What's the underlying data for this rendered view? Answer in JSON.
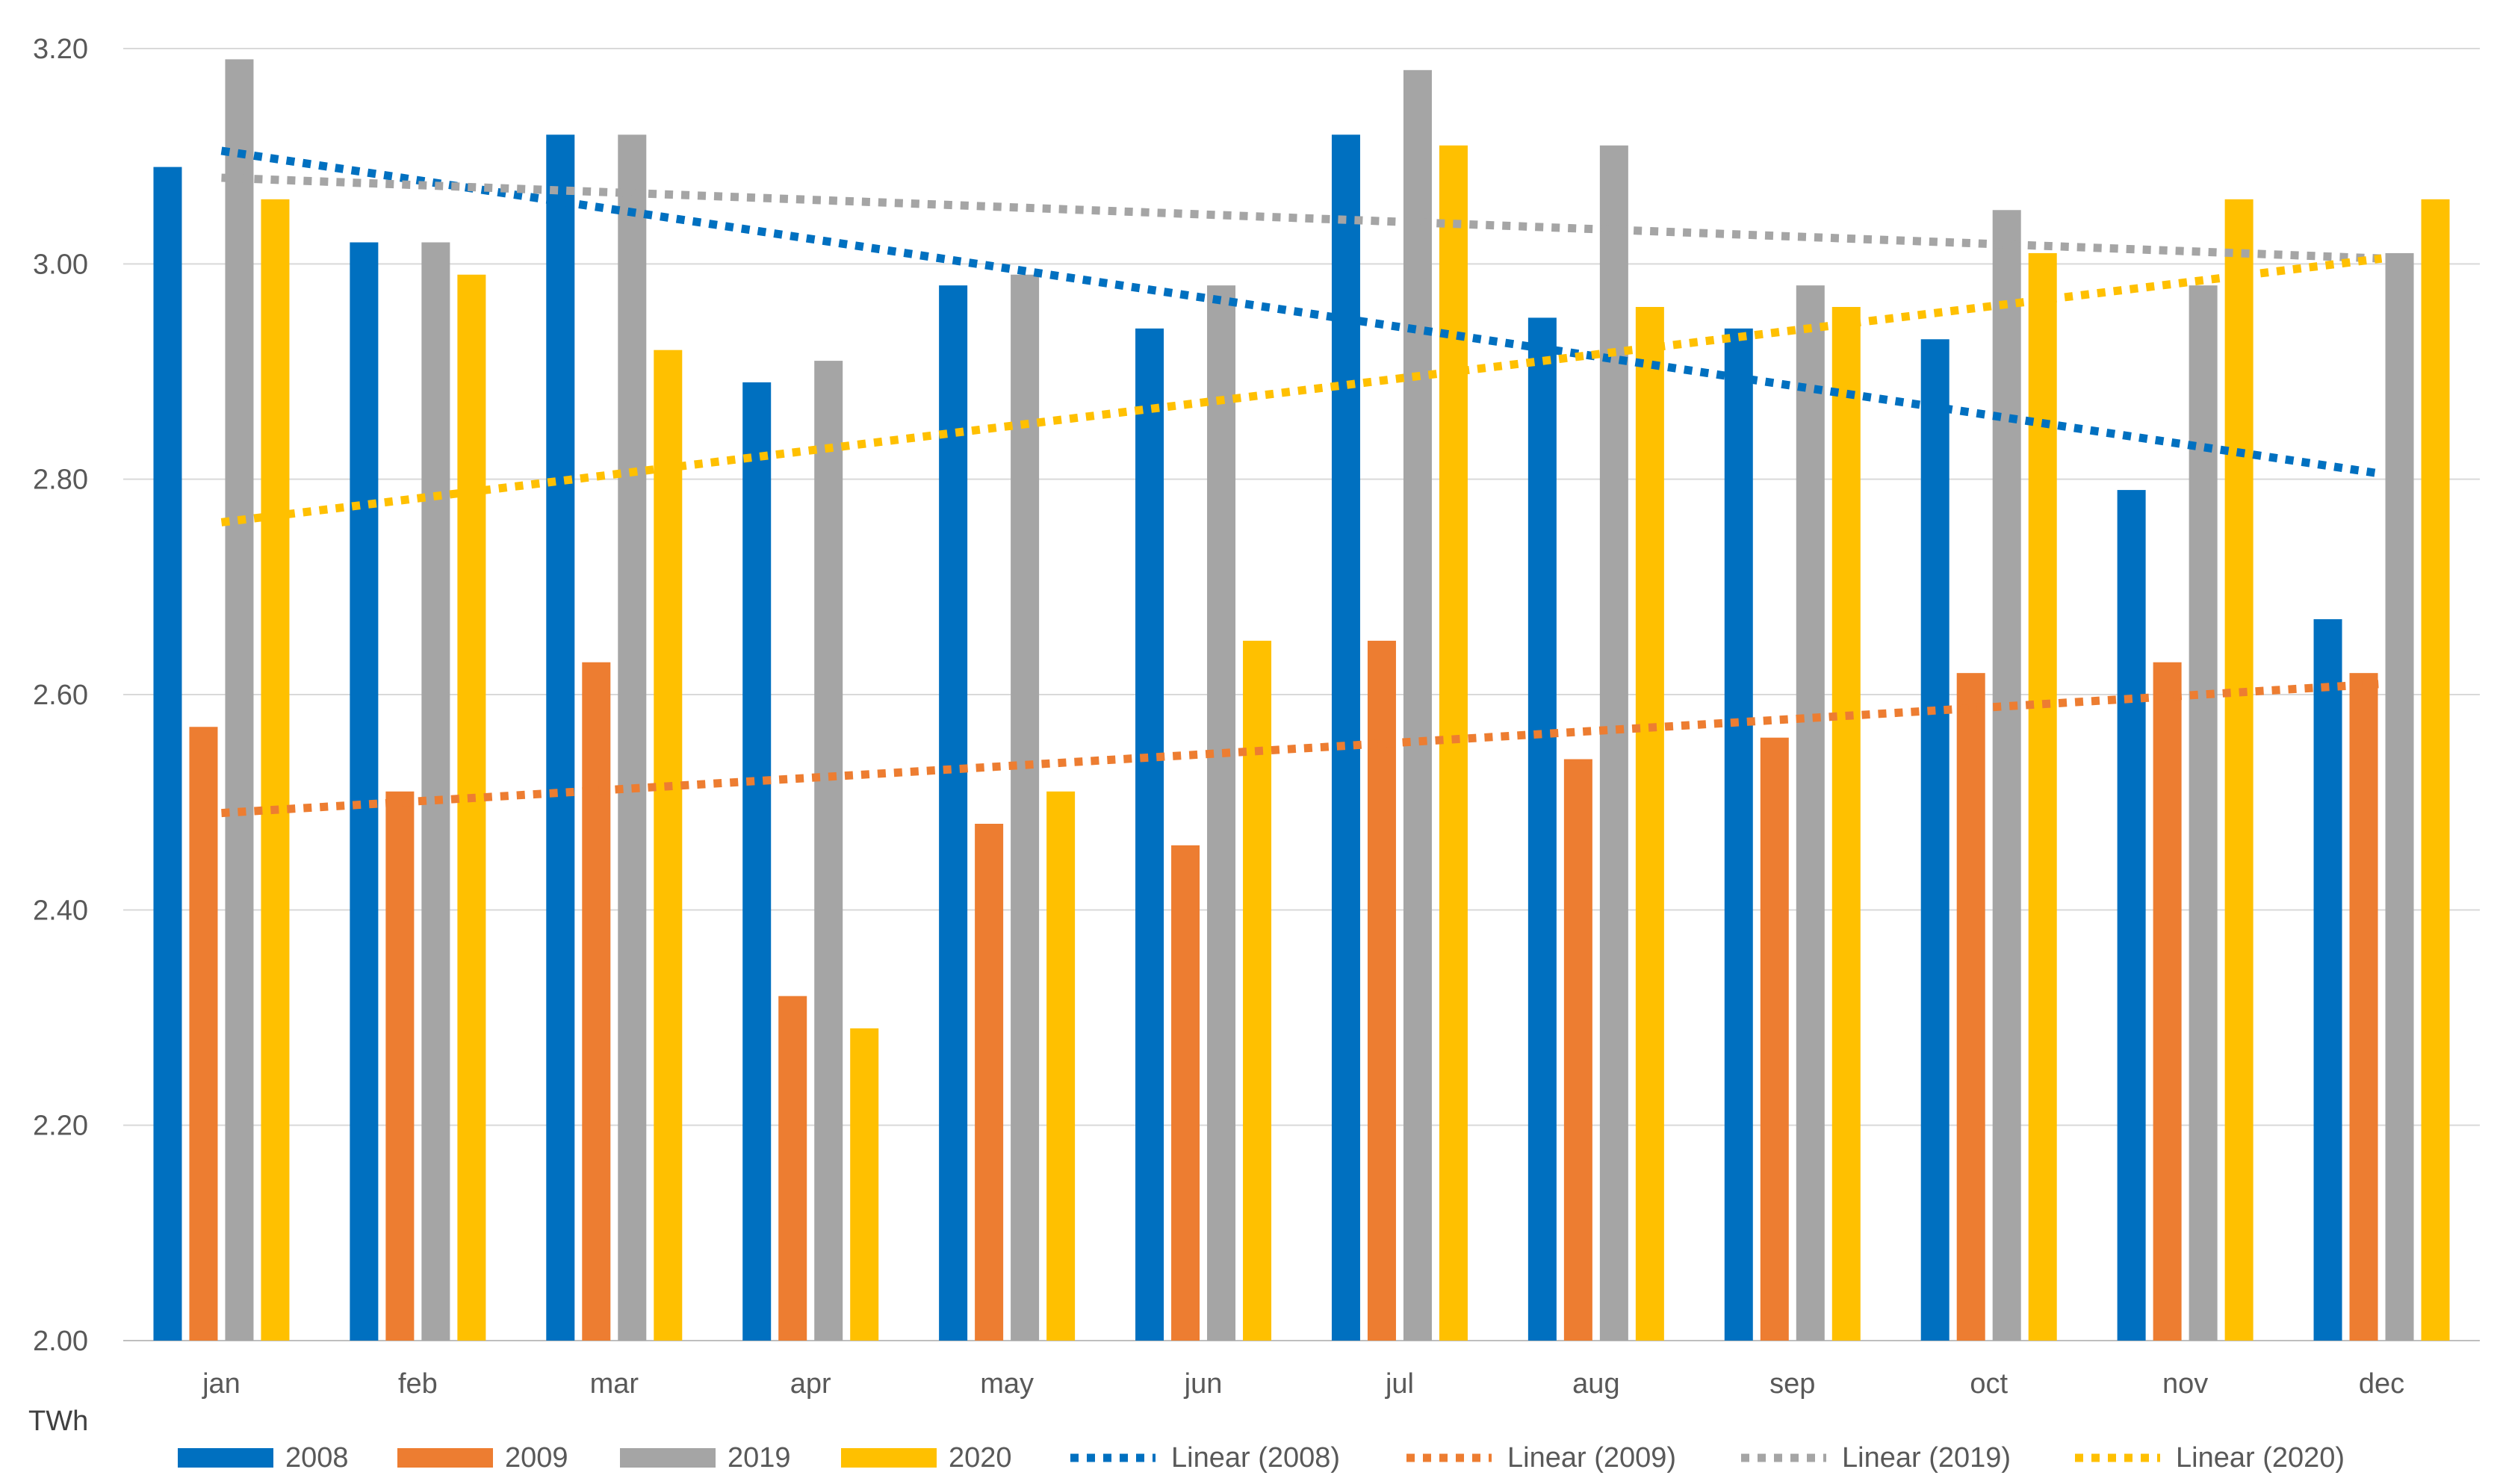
{
  "chart_data": {
    "type": "bar",
    "title": "",
    "xlabel": "",
    "ylabel": "TWh",
    "ylim": [
      2.0,
      3.2
    ],
    "yticks": [
      "2.00",
      "2.20",
      "2.40",
      "2.60",
      "2.80",
      "3.00",
      "3.20"
    ],
    "grid": true,
    "legend_position": "bottom",
    "categories": [
      "jan",
      "feb",
      "mar",
      "apr",
      "may",
      "jun",
      "jul",
      "aug",
      "sep",
      "oct",
      "nov",
      "dec"
    ],
    "series": [
      {
        "name": "2008",
        "color": "#0070C0",
        "values": [
          3.09,
          3.02,
          3.12,
          2.89,
          2.98,
          2.94,
          3.12,
          2.95,
          2.94,
          2.93,
          2.79,
          2.67
        ]
      },
      {
        "name": "2009",
        "color": "#ED7D31",
        "values": [
          2.57,
          2.51,
          2.63,
          2.32,
          2.48,
          2.46,
          2.65,
          2.54,
          2.56,
          2.62,
          2.63,
          2.62
        ]
      },
      {
        "name": "2019",
        "color": "#A5A5A5",
        "values": [
          3.19,
          3.02,
          3.12,
          2.91,
          2.99,
          2.98,
          3.18,
          3.11,
          2.98,
          3.05,
          2.98,
          3.01
        ]
      },
      {
        "name": "2020",
        "color": "#FFC000",
        "values": [
          3.06,
          2.99,
          2.92,
          2.29,
          2.51,
          2.65,
          3.11,
          2.96,
          2.96,
          3.01,
          3.06,
          3.06
        ]
      }
    ],
    "trendlines": [
      {
        "name": "Linear (2008)",
        "color": "#0070C0",
        "start": 3.105,
        "end": 2.805
      },
      {
        "name": "Linear (2009)",
        "color": "#ED7D31",
        "start": 2.49,
        "end": 2.61
      },
      {
        "name": "Linear (2019)",
        "color": "#A5A5A5",
        "start": 3.08,
        "end": 3.005
      },
      {
        "name": "Linear (2020)",
        "color": "#FFC000",
        "start": 2.76,
        "end": 3.005
      }
    ]
  }
}
